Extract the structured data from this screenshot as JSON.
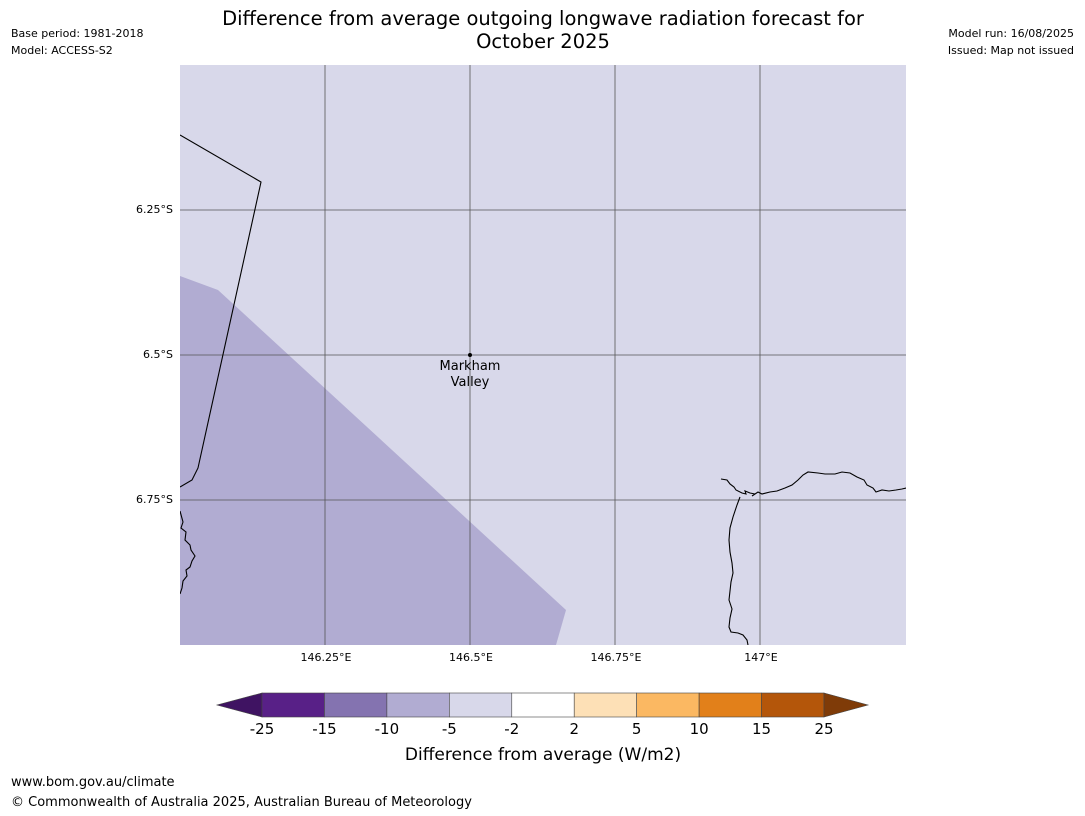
{
  "header": {
    "title_line1": "Difference from average outgoing longwave radiation forecast for",
    "title_line2": "October 2025",
    "base_period": "Base period: 1981-2018",
    "model": "Model: ACCESS-S2",
    "model_run": "Model run: 16/08/2025",
    "issued": "Issued: Map not issued"
  },
  "map": {
    "lat_labels": [
      "6.25°S",
      "6.5°S",
      "6.75°S"
    ],
    "lon_labels": [
      "146.25°E",
      "146.5°E",
      "146.75°E",
      "147°E"
    ],
    "place": {
      "name_line1": "Markham",
      "name_line2": "Valley"
    },
    "background_color": "#d8d8ea",
    "shaded_region_color": "#b1acd2",
    "grid_color": "#555555",
    "coastline_color": "#000000"
  },
  "colorbar": {
    "ticks": [
      "-25",
      "-15",
      "-10",
      "-5",
      "-2",
      "2",
      "5",
      "10",
      "15",
      "25"
    ],
    "colors": [
      "#3f1362",
      "#582087",
      "#8473b0",
      "#b1acd2",
      "#d8d8ea",
      "#ffffff",
      "#fde0b6",
      "#fbb862",
      "#e2801a",
      "#b4560a",
      "#7f3b08"
    ],
    "label": "Difference from average (W/m2)"
  },
  "footer": {
    "url": "www.bom.gov.au/climate",
    "copyright": "© Commonwealth of Australia 2025, Australian Bureau of Meteorology"
  }
}
